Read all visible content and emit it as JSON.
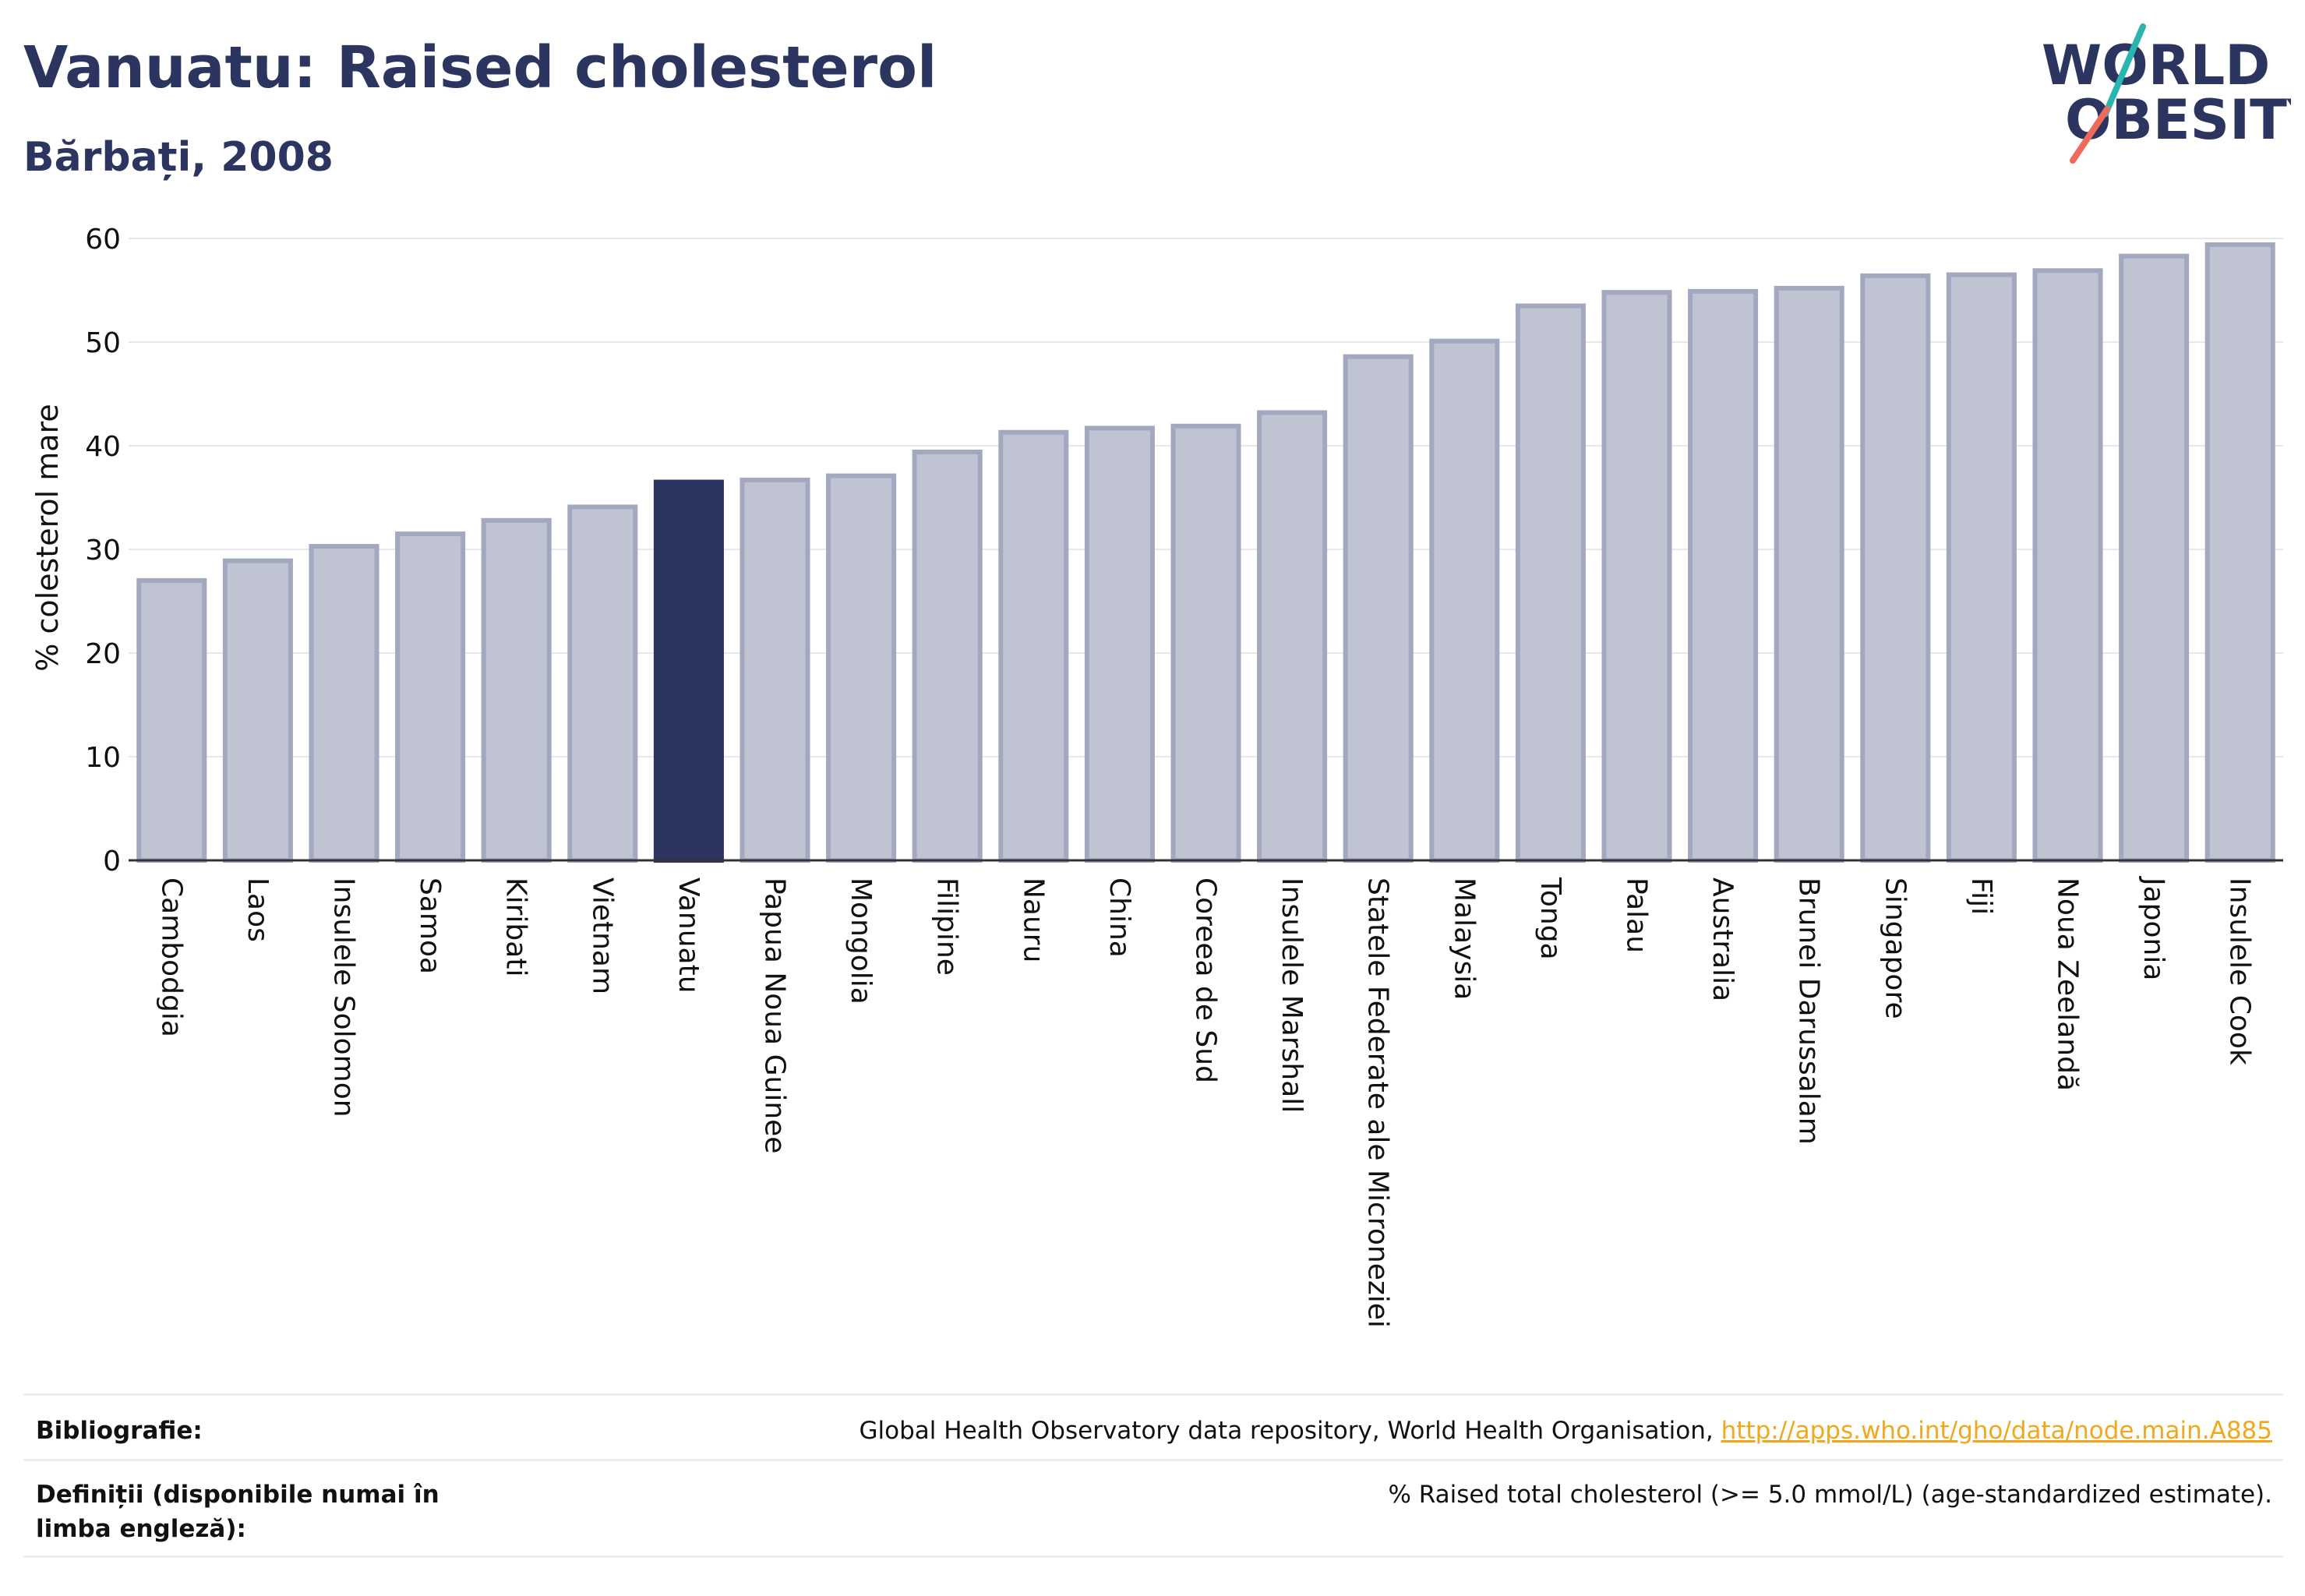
{
  "title": "Vanuatu: Raised cholesterol",
  "subtitle": "Bărbați, 2008",
  "logo": {
    "line1": "WORLD",
    "line2": "OBESITY",
    "icon": "world-obesity-logo"
  },
  "colors": {
    "highlight": "#2b3560",
    "bar": "#c0c3d1",
    "bar_edge": "#a3a8c1",
    "grid": "#e6e8ee",
    "link": "#f2a81d"
  },
  "chart_data": {
    "type": "bar",
    "ylabel": "% colesterol mare",
    "xlabel": "",
    "ylim": [
      0,
      60
    ],
    "yticks": [
      0,
      10,
      20,
      30,
      40,
      50,
      60
    ],
    "grid": true,
    "highlight": "Vanuatu",
    "categories": [
      "Cambodgia",
      "Laos",
      "Insulele Solomon",
      "Samoa",
      "Kiribati",
      "Vietnam",
      "Vanuatu",
      "Papua Noua Guinee",
      "Mongolia",
      "Filipine",
      "Nauru",
      "China",
      "Coreea de Sud",
      "Insulele Marshall",
      "Statele Federate ale Microneziei",
      "Malaysia",
      "Tonga",
      "Palau",
      "Australia",
      "Brunei Darussalam",
      "Singapore",
      "Fiji",
      "Noua Zeelandă",
      "Japonia",
      "Insulele Cook"
    ],
    "values": [
      27.0,
      28.9,
      30.3,
      31.5,
      32.8,
      34.1,
      36.5,
      36.7,
      37.1,
      39.4,
      41.3,
      41.7,
      41.9,
      43.2,
      48.6,
      50.1,
      53.5,
      54.8,
      54.9,
      55.2,
      56.4,
      56.5,
      56.9,
      58.3,
      59.4
    ]
  },
  "footer": {
    "bibliography_label": "Bibliografie:",
    "bibliography_text": "Global Health Observatory data repository, World Health Organisation, ",
    "bibliography_link": "http://apps.who.int/gho/data/node.main.A885",
    "definitions_label": "Definiții (disponibile numai în limba engleză):",
    "definitions_text": "% Raised total cholesterol (>= 5.0 mmol/L) (age-standardized estimate)."
  }
}
